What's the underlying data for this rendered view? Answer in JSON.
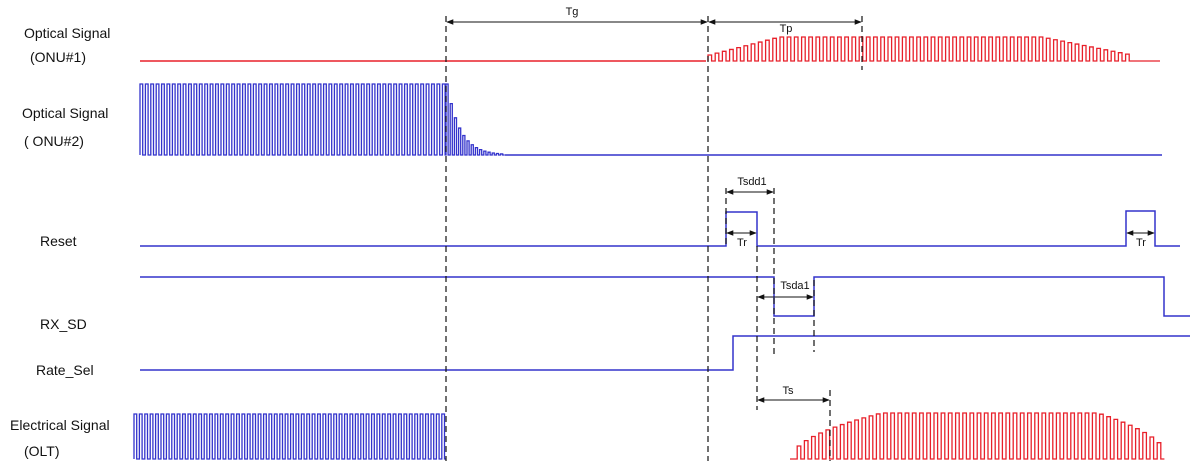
{
  "labels": {
    "onu1_line1": "Optical Signal",
    "onu1_line2": "(ONU#1)",
    "onu2_line1": "Optical Signal",
    "onu2_line2": "( ONU#2)",
    "reset": "Reset",
    "rx_sd": "RX_SD",
    "rate_sel": "Rate_Sel",
    "elec_line1": "Electrical Signal",
    "elec_line2": "(OLT)"
  },
  "timing": {
    "tg": "Tg",
    "tp": "Tp",
    "tsdd1": "Tsdd1",
    "tr1": "Tr",
    "tr2": "Tr",
    "tsda1": "Tsda1",
    "ts": "Ts"
  },
  "colors": {
    "red_signal": "#e8202a",
    "blue_signal": "#3333cc",
    "dimension": "#111111"
  }
}
